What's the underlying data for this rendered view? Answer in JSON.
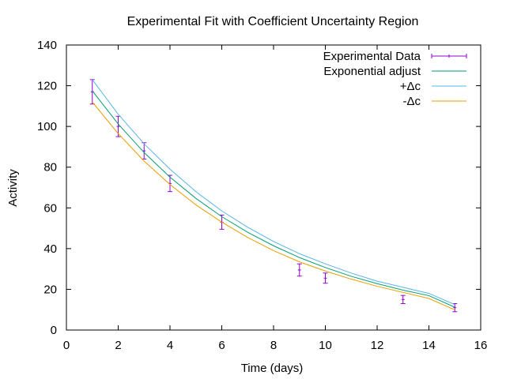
{
  "chart_data": {
    "type": "line",
    "title": "Experimental Fit with Coefficient Uncertainty Region",
    "xlabel": "Time (days)",
    "ylabel": "Activity",
    "xlim": [
      0,
      16
    ],
    "ylim": [
      0,
      140
    ],
    "xticks": [
      0,
      2,
      4,
      6,
      8,
      10,
      12,
      14,
      16
    ],
    "yticks": [
      0,
      20,
      40,
      60,
      80,
      100,
      120,
      140
    ],
    "grid": false,
    "legend_position": "top-right",
    "series": [
      {
        "name": "Experimental Data",
        "kind": "errorbars",
        "color": "#9400d3",
        "points": [
          {
            "x": 1,
            "y": 117,
            "err": 6
          },
          {
            "x": 2,
            "y": 100,
            "err": 5
          },
          {
            "x": 3,
            "y": 88,
            "err": 4
          },
          {
            "x": 4,
            "y": 72,
            "err": 4
          },
          {
            "x": 6,
            "y": 53,
            "err": 3.5
          },
          {
            "x": 9,
            "y": 29.5,
            "err": 3
          },
          {
            "x": 10,
            "y": 25.5,
            "err": 2.5
          },
          {
            "x": 13,
            "y": 15,
            "err": 2
          },
          {
            "x": 15,
            "y": 11,
            "err": 2
          }
        ]
      },
      {
        "name": "Exponential adjust",
        "kind": "line",
        "color": "#009e73",
        "x": [
          1,
          2,
          3,
          4,
          5,
          6,
          7,
          8,
          9,
          10,
          11,
          12,
          13,
          14,
          15
        ],
        "values": [
          117.5,
          101.2,
          87.2,
          75.1,
          64.7,
          55.7,
          48.0,
          41.4,
          35.6,
          30.7,
          26.4,
          22.8,
          19.6,
          16.9,
          11.2
        ]
      },
      {
        "name": "+Δc",
        "kind": "line",
        "color": "#56b4e9",
        "x": [
          1,
          2,
          3,
          4,
          5,
          6,
          7,
          8,
          9,
          10,
          11,
          12,
          13,
          14,
          15
        ],
        "values": [
          123,
          106,
          91.5,
          79,
          68,
          58.5,
          50.5,
          43.5,
          37.5,
          32.5,
          28,
          24,
          21,
          18,
          12.5
        ]
      },
      {
        "name": "-Δc",
        "kind": "line",
        "color": "#e69f00",
        "x": [
          1,
          2,
          3,
          4,
          5,
          6,
          7,
          8,
          9,
          10,
          11,
          12,
          13,
          14,
          15
        ],
        "values": [
          112,
          96.5,
          83,
          71.5,
          61.5,
          53,
          45.5,
          39,
          33.5,
          29,
          25,
          21.5,
          18.5,
          15.5,
          9.9
        ]
      }
    ]
  }
}
